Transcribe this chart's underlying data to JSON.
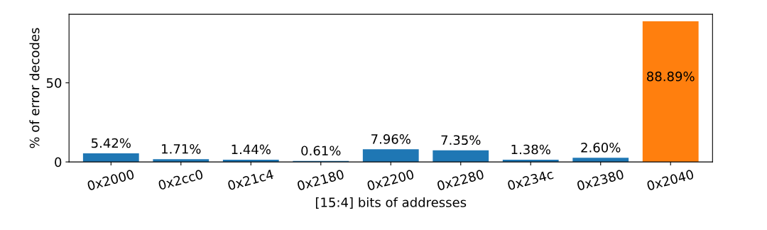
{
  "chart_data": {
    "type": "bar",
    "xlabel": "[15:4] bits of addresses",
    "ylabel": "% of error decodes",
    "categories": [
      "0x2000",
      "0x2cc0",
      "0x21c4",
      "0x2180",
      "0x2200",
      "0x2280",
      "0x234c",
      "0x2380",
      "0x2040"
    ],
    "values": [
      5.42,
      1.71,
      1.44,
      0.61,
      7.96,
      7.35,
      1.38,
      2.6,
      88.89
    ],
    "colors": [
      "#1f77b4",
      "#1f77b4",
      "#1f77b4",
      "#1f77b4",
      "#1f77b4",
      "#1f77b4",
      "#1f77b4",
      "#1f77b4",
      "#ff7f0e"
    ],
    "value_labels": [
      "5.42%",
      "1.71%",
      "1.44%",
      "0.61%",
      "7.96%",
      "7.35%",
      "1.38%",
      "2.60%",
      "88.89%"
    ],
    "ylim": [
      0,
      93.33
    ],
    "yticks": [
      0,
      50
    ],
    "grid": false,
    "legend": false
  }
}
